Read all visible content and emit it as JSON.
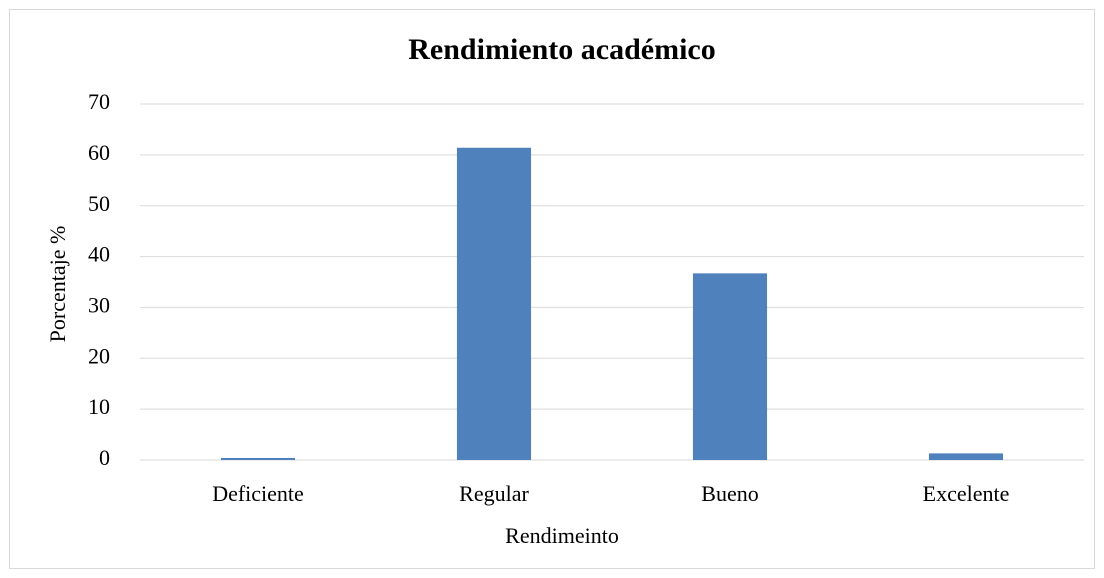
{
  "chart_data": {
    "type": "bar",
    "title": "Rendimiento académico",
    "x_label": "Rendimeinto",
    "y_label": "Porcentaje %",
    "categories": [
      "Deficiente",
      "Regular",
      "Bueno",
      "Excelente"
    ],
    "values": [
      0.4,
      61.4,
      36.7,
      1.3
    ],
    "color": "#4f81bd",
    "ylim": [
      0,
      70
    ],
    "yticks": [
      0,
      10,
      20,
      30,
      40,
      50,
      60,
      70
    ],
    "grid": true
  }
}
